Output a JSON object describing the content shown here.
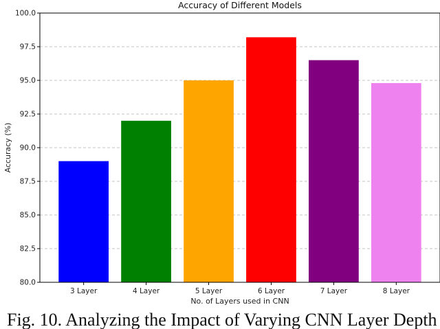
{
  "chart_data": {
    "type": "bar",
    "title": "Accuracy of Different Models",
    "xlabel": "No. of Layers used in CNN",
    "ylabel": "Accuracy (%)",
    "categories": [
      "3 Layer",
      "4 Layer",
      "5 Layer",
      "6 Layer",
      "7 Layer",
      "8 Layer"
    ],
    "values": [
      89.0,
      92.0,
      95.0,
      98.2,
      96.5,
      94.8
    ],
    "colors": [
      "#0000ff",
      "#008000",
      "#ffa500",
      "#ff0000",
      "#800080",
      "#ee82ee"
    ],
    "ylim": [
      80.0,
      100.0
    ],
    "yticks": [
      "80.0",
      "82.5",
      "85.0",
      "87.5",
      "90.0",
      "92.5",
      "95.0",
      "97.5",
      "100.0"
    ],
    "grid": "y-dashed"
  },
  "caption": {
    "text": "Fig. 10. Analyzing the Impact of Varying CNN Layer Depth"
  }
}
